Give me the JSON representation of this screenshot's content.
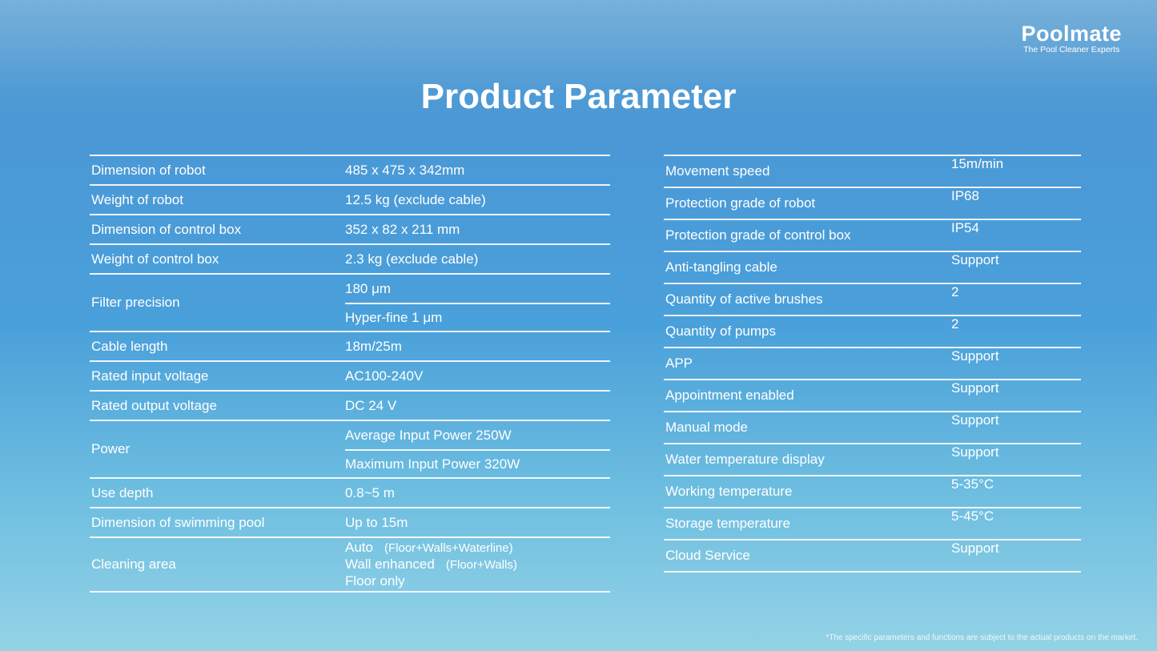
{
  "brand": {
    "name": "Poolmate",
    "tagline": "The Pool Cleaner Experts"
  },
  "title": "Product Parameter",
  "left_table": [
    {
      "label": "Dimension of robot",
      "values": [
        "485 x 475 x 342mm"
      ]
    },
    {
      "label": "Weight of robot",
      "values": [
        "12.5 kg (exclude cable)"
      ]
    },
    {
      "label": "Dimension of control box",
      "values": [
        "352 x 82 x 211 mm"
      ]
    },
    {
      "label": "Weight of control box",
      "values": [
        "2.3 kg (exclude cable)"
      ]
    },
    {
      "label": "Filter precision",
      "values": [
        "180 μm",
        "Hyper-fine 1 μm"
      ]
    },
    {
      "label": "Cable length",
      "values": [
        "18m/25m"
      ]
    },
    {
      "label": "Rated input voltage",
      "values": [
        "AC100-240V"
      ]
    },
    {
      "label": "Rated output voltage",
      "values": [
        "DC 24 V"
      ]
    },
    {
      "label": "Power",
      "values": [
        "Average Input Power 250W",
        "Maximum Input Power 320W"
      ]
    },
    {
      "label": "Use depth",
      "values": [
        "0.8~5 m"
      ]
    },
    {
      "label": "Dimension of swimming pool",
      "values": [
        "Up to 15m"
      ]
    }
  ],
  "cleaning_area": {
    "label": "Cleaning area",
    "modes": [
      {
        "mode": "Auto",
        "detail": "(Floor+Walls+Waterline)"
      },
      {
        "mode": "Wall enhanced",
        "detail": "(Floor+Walls)"
      },
      {
        "mode": "Floor only",
        "detail": ""
      }
    ]
  },
  "right_table": [
    {
      "label": "Movement speed",
      "value": "15m/min"
    },
    {
      "label": "Protection grade of robot",
      "value": "IP68"
    },
    {
      "label": "Protection grade of control box",
      "value": "IP54"
    },
    {
      "label": "Anti-tangling cable",
      "value": "Support"
    },
    {
      "label": "Quantity of active brushes",
      "value": "2"
    },
    {
      "label": "Quantity of pumps",
      "value": "2"
    },
    {
      "label": "APP",
      "value": "Support"
    },
    {
      "label": "Appointment enabled",
      "value": "Support"
    },
    {
      "label": "Manual mode",
      "value": "Support"
    },
    {
      "label": "Water temperature display",
      "value": "Support"
    },
    {
      "label": "Working temperature",
      "value": "5-35°C"
    },
    {
      "label": "Storage temperature",
      "value": "5-45°C"
    },
    {
      "label": "Cloud Service",
      "value": "Support"
    }
  ],
  "footnote": "*The specific parameters and functions are subject to the actual products on the market."
}
